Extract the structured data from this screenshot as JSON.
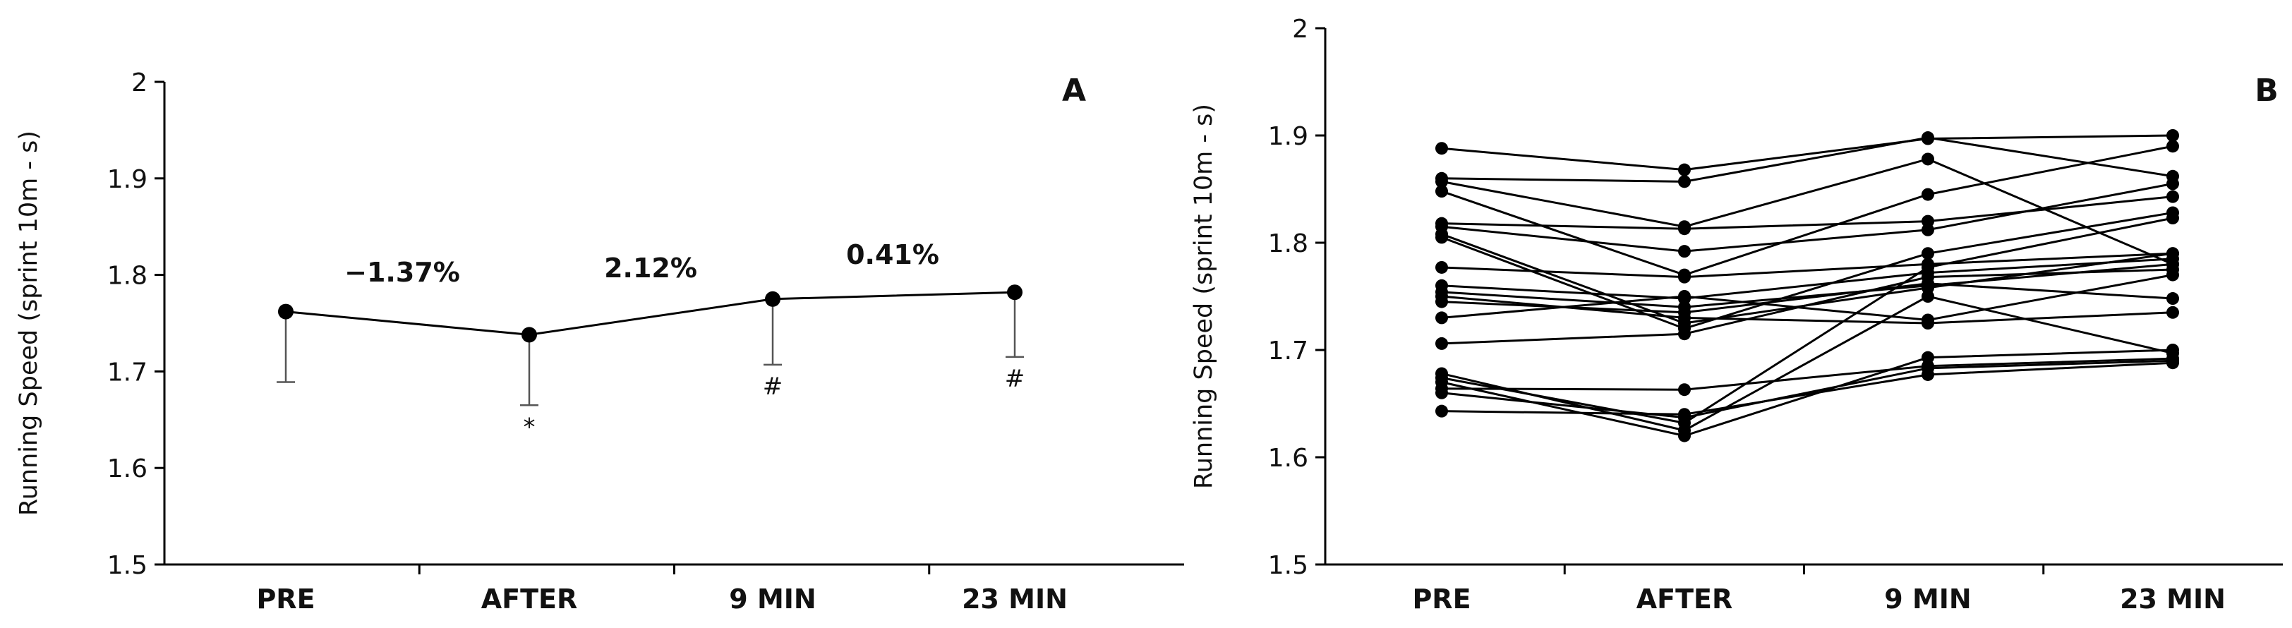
{
  "chart_data": [
    {
      "type": "line",
      "panel_label": "A",
      "ylabel": "Running Speed (sprint 10m - s)",
      "xlabel": "",
      "categories": [
        "PRE",
        "AFTER",
        "9 MIN",
        "23 MIN"
      ],
      "ylim": [
        1.5,
        2.0
      ],
      "yticks": [
        "1.5",
        "1.6",
        "1.7",
        "1.8",
        "1.9",
        "2"
      ],
      "series": [
        {
          "values": [
            1.762,
            1.738,
            1.775,
            1.782
          ],
          "error_lower": [
            0.073,
            0.073,
            0.068,
            0.067
          ]
        }
      ],
      "annotations": {
        "percent_changes": [
          "−1.37%",
          "2.12%",
          "0.41%"
        ],
        "significance": [
          "",
          "*",
          "#",
          "#"
        ]
      },
      "color": "#000000",
      "grid": false
    },
    {
      "type": "line",
      "panel_label": "B",
      "ylabel": "Running Speed (sprint 10m - s)",
      "xlabel": "",
      "categories": [
        "PRE",
        "AFTER",
        "9 MIN",
        "23 MIN"
      ],
      "ylim": [
        1.5,
        2.0
      ],
      "yticks": [
        "1.5",
        "1.6",
        "1.7",
        "1.8",
        "1.9",
        "2"
      ],
      "series": [
        {
          "values": [
            1.888,
            1.868,
            1.897,
            1.9
          ]
        },
        {
          "values": [
            1.86,
            1.857,
            1.898,
            1.862
          ]
        },
        {
          "values": [
            1.857,
            1.815,
            1.878,
            1.78
          ]
        },
        {
          "values": [
            1.848,
            1.77,
            1.845,
            1.89
          ]
        },
        {
          "values": [
            1.818,
            1.813,
            1.82,
            1.843
          ]
        },
        {
          "values": [
            1.815,
            1.792,
            1.812,
            1.855
          ]
        },
        {
          "values": [
            1.808,
            1.725,
            1.758,
            1.79
          ]
        },
        {
          "values": [
            1.805,
            1.72,
            1.79,
            1.828
          ]
        },
        {
          "values": [
            1.777,
            1.768,
            1.78,
            1.79
          ]
        },
        {
          "values": [
            1.76,
            1.748,
            1.772,
            1.785
          ]
        },
        {
          "values": [
            1.754,
            1.74,
            1.76,
            1.78
          ]
        },
        {
          "values": [
            1.75,
            1.73,
            1.725,
            1.735
          ]
        },
        {
          "values": [
            1.745,
            1.735,
            1.762,
            1.748
          ]
        },
        {
          "values": [
            1.73,
            1.75,
            1.728,
            1.77
          ]
        },
        {
          "values": [
            1.706,
            1.715,
            1.768,
            1.775
          ]
        },
        {
          "values": [
            1.678,
            1.625,
            1.75,
            1.697
          ]
        },
        {
          "values": [
            1.674,
            1.632,
            1.777,
            1.823
          ]
        },
        {
          "values": [
            1.67,
            1.62,
            1.693,
            1.7
          ]
        },
        {
          "values": [
            1.664,
            1.663,
            1.685,
            1.692
          ]
        },
        {
          "values": [
            1.66,
            1.637,
            1.683,
            1.69
          ]
        },
        {
          "values": [
            1.643,
            1.64,
            1.677,
            1.688
          ]
        }
      ],
      "color": "#000000",
      "grid": false
    }
  ]
}
